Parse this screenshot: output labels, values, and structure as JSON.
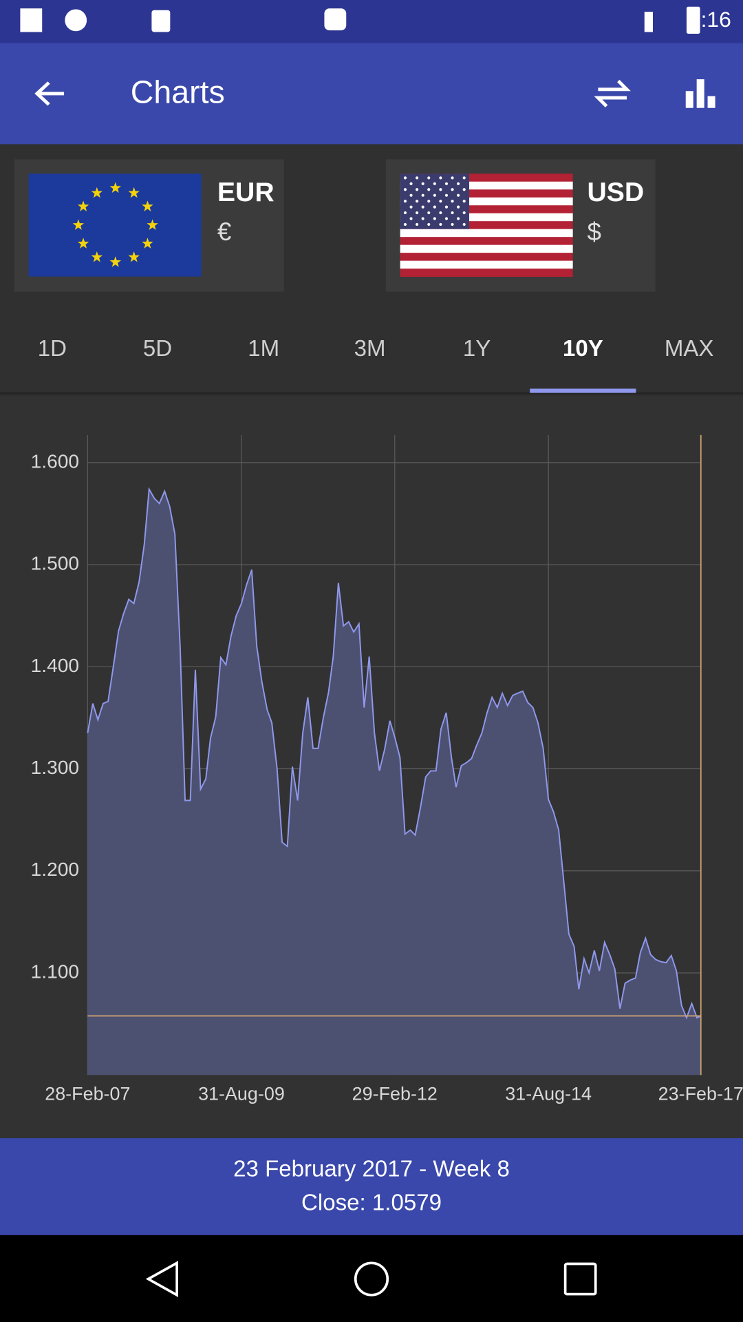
{
  "status_bar": {
    "time": "9:16"
  },
  "app_bar": {
    "title": "Charts"
  },
  "currencies": [
    {
      "code": "EUR",
      "symbol": "€"
    },
    {
      "code": "USD",
      "symbol": "$"
    }
  ],
  "tabs": [
    "1D",
    "5D",
    "1M",
    "3M",
    "1Y",
    "10Y",
    "MAX"
  ],
  "chart_data": {
    "type": "area",
    "color": "#8f98ec",
    "fill_color": "#4d5171",
    "grid": true,
    "x": [
      "2007-02-28",
      "2007-03-31",
      "2007-04-30",
      "2007-05-31",
      "2007-06-30",
      "2007-07-31",
      "2007-08-31",
      "2007-09-30",
      "2007-10-31",
      "2007-11-30",
      "2007-12-31",
      "2008-01-31",
      "2008-02-29",
      "2008-03-31",
      "2008-04-30",
      "2008-05-31",
      "2008-06-30",
      "2008-07-31",
      "2008-08-31",
      "2008-09-30",
      "2008-10-31",
      "2008-11-30",
      "2008-12-31",
      "2009-01-31",
      "2009-02-28",
      "2009-03-31",
      "2009-04-30",
      "2009-05-31",
      "2009-06-30",
      "2009-07-31",
      "2009-08-31",
      "2009-09-30",
      "2009-10-31",
      "2009-11-30",
      "2009-12-31",
      "2010-01-31",
      "2010-02-28",
      "2010-03-31",
      "2010-04-30",
      "2010-05-31",
      "2010-06-30",
      "2010-07-31",
      "2010-08-31",
      "2010-09-30",
      "2010-10-31",
      "2010-11-30",
      "2010-12-31",
      "2011-01-31",
      "2011-02-28",
      "2011-03-31",
      "2011-04-30",
      "2011-05-31",
      "2011-06-30",
      "2011-07-31",
      "2011-08-31",
      "2011-09-30",
      "2011-10-31",
      "2011-11-30",
      "2011-12-31",
      "2012-01-31",
      "2012-02-29",
      "2012-03-31",
      "2012-04-30",
      "2012-05-31",
      "2012-06-30",
      "2012-07-31",
      "2012-08-31",
      "2012-09-30",
      "2012-10-31",
      "2012-11-30",
      "2012-12-31",
      "2013-01-31",
      "2013-02-28",
      "2013-03-31",
      "2013-04-30",
      "2013-05-31",
      "2013-06-30",
      "2013-07-31",
      "2013-08-31",
      "2013-09-30",
      "2013-10-31",
      "2013-11-30",
      "2013-12-31",
      "2014-01-31",
      "2014-02-28",
      "2014-03-31",
      "2014-04-30",
      "2014-05-31",
      "2014-06-30",
      "2014-07-31",
      "2014-08-31",
      "2014-09-30",
      "2014-10-31",
      "2014-11-30",
      "2014-12-31",
      "2015-01-31",
      "2015-02-28",
      "2015-03-31",
      "2015-04-30",
      "2015-05-31",
      "2015-06-30",
      "2015-07-31",
      "2015-08-31",
      "2015-09-30",
      "2015-10-31",
      "2015-11-30",
      "2015-12-31",
      "2016-01-31",
      "2016-02-29",
      "2016-03-31",
      "2016-04-30",
      "2016-05-31",
      "2016-06-30",
      "2016-07-31",
      "2016-08-31",
      "2016-09-30",
      "2016-10-31",
      "2016-11-30",
      "2016-12-31",
      "2017-01-31",
      "2017-02-23"
    ],
    "values": [
      1.335,
      1.364,
      1.348,
      1.364,
      1.366,
      1.4,
      1.435,
      1.452,
      1.466,
      1.462,
      1.483,
      1.52,
      1.574,
      1.565,
      1.56,
      1.572,
      1.557,
      1.53,
      1.42,
      1.269,
      1.269,
      1.397,
      1.28,
      1.29,
      1.33,
      1.351,
      1.409,
      1.402,
      1.43,
      1.45,
      1.462,
      1.48,
      1.495,
      1.42,
      1.385,
      1.358,
      1.345,
      1.3,
      1.228,
      1.224,
      1.302,
      1.269,
      1.335,
      1.37,
      1.32,
      1.32,
      1.35,
      1.375,
      1.41,
      1.482,
      1.44,
      1.444,
      1.434,
      1.442,
      1.36,
      1.41,
      1.335,
      1.298,
      1.319,
      1.347,
      1.331,
      1.311,
      1.236,
      1.24,
      1.235,
      1.262,
      1.292,
      1.298,
      1.298,
      1.339,
      1.355,
      1.311,
      1.282,
      1.303,
      1.306,
      1.31,
      1.323,
      1.335,
      1.355,
      1.37,
      1.36,
      1.374,
      1.362,
      1.372,
      1.374,
      1.376,
      1.365,
      1.36,
      1.345,
      1.32,
      1.27,
      1.258,
      1.24,
      1.19,
      1.138,
      1.126,
      1.084,
      1.114,
      1.1,
      1.122,
      1.102,
      1.13,
      1.118,
      1.104,
      1.065,
      1.09,
      1.093,
      1.095,
      1.12,
      1.134,
      1.118,
      1.113,
      1.111,
      1.11,
      1.117,
      1.102,
      1.068,
      1.056,
      1.07,
      1.056,
      1.0579
    ],
    "xlim": [
      "2007-02-28",
      "2017-02-23"
    ],
    "xticks": [
      {
        "value": "2007-02-28",
        "label": "28-Feb-07"
      },
      {
        "value": "2009-08-31",
        "label": "31-Aug-09"
      },
      {
        "value": "2012-02-29",
        "label": "29-Feb-12"
      },
      {
        "value": "2014-08-31",
        "label": "31-Aug-14"
      },
      {
        "value": "2017-02-23",
        "label": "23-Feb-17"
      }
    ],
    "ylim": [
      1.0,
      1.627
    ],
    "yticks": [
      {
        "value": 1.6,
        "label": "1.600"
      },
      {
        "value": 1.5,
        "label": "1.500"
      },
      {
        "value": 1.4,
        "label": "1.400"
      },
      {
        "value": 1.3,
        "label": "1.300"
      },
      {
        "value": 1.2,
        "label": "1.200"
      },
      {
        "value": 1.1,
        "label": "1.100"
      }
    ]
  },
  "footer": {
    "date": "23 February 2017 - Week 8",
    "close": "Close: 1.0579"
  }
}
